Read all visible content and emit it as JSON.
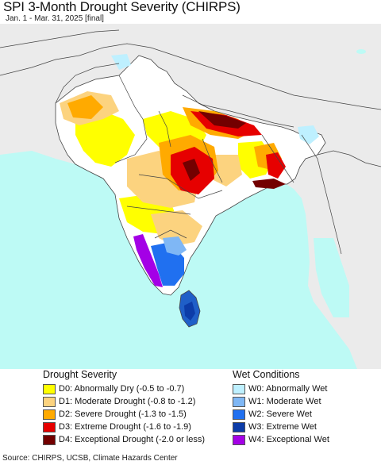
{
  "header": {
    "title": "SPI 3-Month Drought Severity (CHIRPS)",
    "subtitle": "Jan. 1 - Mar. 31, 2025 [final]"
  },
  "map": {
    "colors": {
      "ocean": "#bdfaf5",
      "land_neutral": "#ebebeb",
      "normal": "#ffffff",
      "border": "#444444"
    }
  },
  "legend": {
    "drought_heading": "Drought Severity",
    "wet_heading": "Wet Conditions",
    "drought_items": [
      {
        "label": "D0: Abnormally Dry (-0.5 to -0.7)",
        "color": "#ffff00"
      },
      {
        "label": "D1: Moderate Drought (-0.8 to -1.2)",
        "color": "#fcd37f"
      },
      {
        "label": "D2: Severe Drought (-1.3 to -1.5)",
        "color": "#ffaa00"
      },
      {
        "label": "D3: Extreme Drought (-1.6 to -1.9)",
        "color": "#e60000"
      },
      {
        "label": "D4: Exceptional Drought (-2.0 or less)",
        "color": "#730000"
      }
    ],
    "wet_items": [
      {
        "label": "W0: Abnormally Wet",
        "color": "#bef0ff"
      },
      {
        "label": "W1: Moderate Wet",
        "color": "#7fb7f5"
      },
      {
        "label": "W2: Severe Wet",
        "color": "#2070f0"
      },
      {
        "label": "W3: Extreme Wet",
        "color": "#0c3ca8"
      },
      {
        "label": "W4: Exceptional Wet",
        "color": "#a400e6"
      }
    ]
  },
  "footer": {
    "source": "Source: CHIRPS, UCSB, Climate Hazards Center"
  }
}
